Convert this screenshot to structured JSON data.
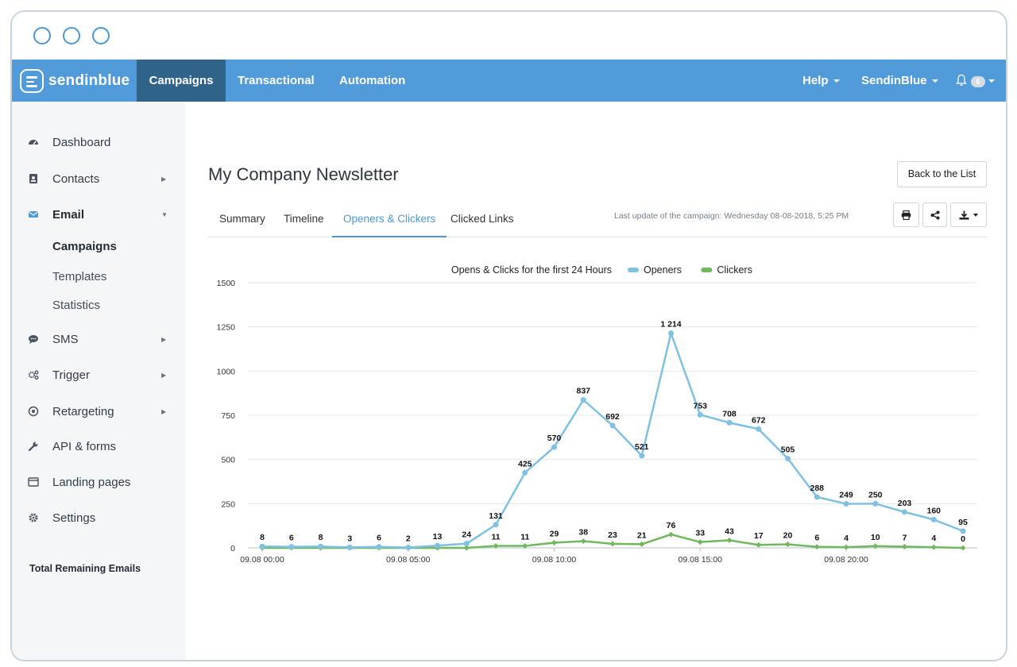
{
  "app": {
    "logo_text": "sendinblue",
    "nav": {
      "campaigns": "Campaigns",
      "transactional": "Transactional",
      "automation": "Automation",
      "help": "Help",
      "account": "SendinBlue",
      "notifications_count": "6"
    },
    "brand_color": "#519bdb",
    "active_nav_color": "#2f6389"
  },
  "sidebar": {
    "items": [
      {
        "label": "Dashboard",
        "icon": "dashboard-icon"
      },
      {
        "label": "Contacts",
        "icon": "contacts-icon"
      },
      {
        "label": "Email",
        "icon": "envelope-icon"
      },
      {
        "label": "SMS",
        "icon": "chat-icon"
      },
      {
        "label": "Trigger",
        "icon": "gears-icon"
      },
      {
        "label": "Retargeting",
        "icon": "target-icon"
      },
      {
        "label": "API & forms",
        "icon": "wrench-icon"
      },
      {
        "label": "Landing pages",
        "icon": "browser-icon"
      },
      {
        "label": "Settings",
        "icon": "gear-icon"
      }
    ],
    "email_sub": [
      "Campaigns",
      "Templates",
      "Statistics"
    ],
    "remaining_label": "Total Remaining Emails"
  },
  "page": {
    "title": "My Company Newsletter",
    "back_button": "Back to the List",
    "tabs": [
      "Summary",
      "Timeline",
      "Openers & Clickers",
      "Clicked Links"
    ],
    "active_tab": "Openers & Clickers",
    "last_update": "Last update of the campaign:  Wednesday 08-08-2018, 5:25 PM"
  },
  "chart_data": {
    "type": "line",
    "title": "Opens & Clicks for the first 24 Hours",
    "x": [
      "09.08 00:00",
      "09.08 01:00",
      "09.08 02:00",
      "09.08 03:00",
      "09.08 04:00",
      "09.08 05:00",
      "09.08 06:00",
      "09.08 07:00",
      "09.08 08:00",
      "09.08 09:00",
      "09.08 10:00",
      "09.08 11:00",
      "09.08 12:00",
      "09.08 13:00",
      "09.08 14:00",
      "09.08 15:00",
      "09.08 16:00",
      "09.08 17:00",
      "09.08 18:00",
      "09.08 19:00",
      "09.08 20:00",
      "09.08 21:00",
      "09.08 22:00",
      "09.08 23:00",
      "09.09 00:00"
    ],
    "x_tick_labels": [
      "09.08 00:00",
      "09.08 05:00",
      "09.08 10:00",
      "09.08 15:00",
      "09.08 20:00"
    ],
    "series": [
      {
        "name": "Openers",
        "color": "#7ec1e3",
        "values": [
          8,
          6,
          8,
          3,
          6,
          2,
          13,
          24,
          131,
          425,
          570,
          837,
          692,
          521,
          1214,
          753,
          708,
          672,
          505,
          288,
          249,
          250,
          203,
          160,
          95
        ]
      },
      {
        "name": "Clickers",
        "color": "#6fb85e",
        "values": [
          0,
          0,
          0,
          0,
          0,
          0,
          0,
          0,
          11,
          11,
          29,
          38,
          23,
          21,
          76,
          33,
          43,
          17,
          20,
          6,
          4,
          10,
          7,
          4,
          0
        ]
      }
    ],
    "point_labels": [
      "8",
      "6",
      "8",
      "3",
      "6",
      "2",
      "13",
      "24",
      "131",
      "425",
      "570",
      "837",
      "692",
      "521",
      "1 214",
      "753",
      "708",
      "672",
      "505",
      "288",
      "249",
      "250",
      "203",
      "160",
      "95"
    ],
    "clicker_labels": [
      "11",
      "11",
      "29",
      "38",
      "23",
      "21",
      "76",
      "33",
      "43",
      "17",
      "20",
      "6",
      "4",
      "10",
      "7",
      "4",
      "0"
    ],
    "y_ticks": [
      0,
      250,
      500,
      750,
      1000,
      1250,
      1500
    ],
    "ylim": [
      0,
      1500
    ],
    "grid": true,
    "legend_position": "top"
  }
}
